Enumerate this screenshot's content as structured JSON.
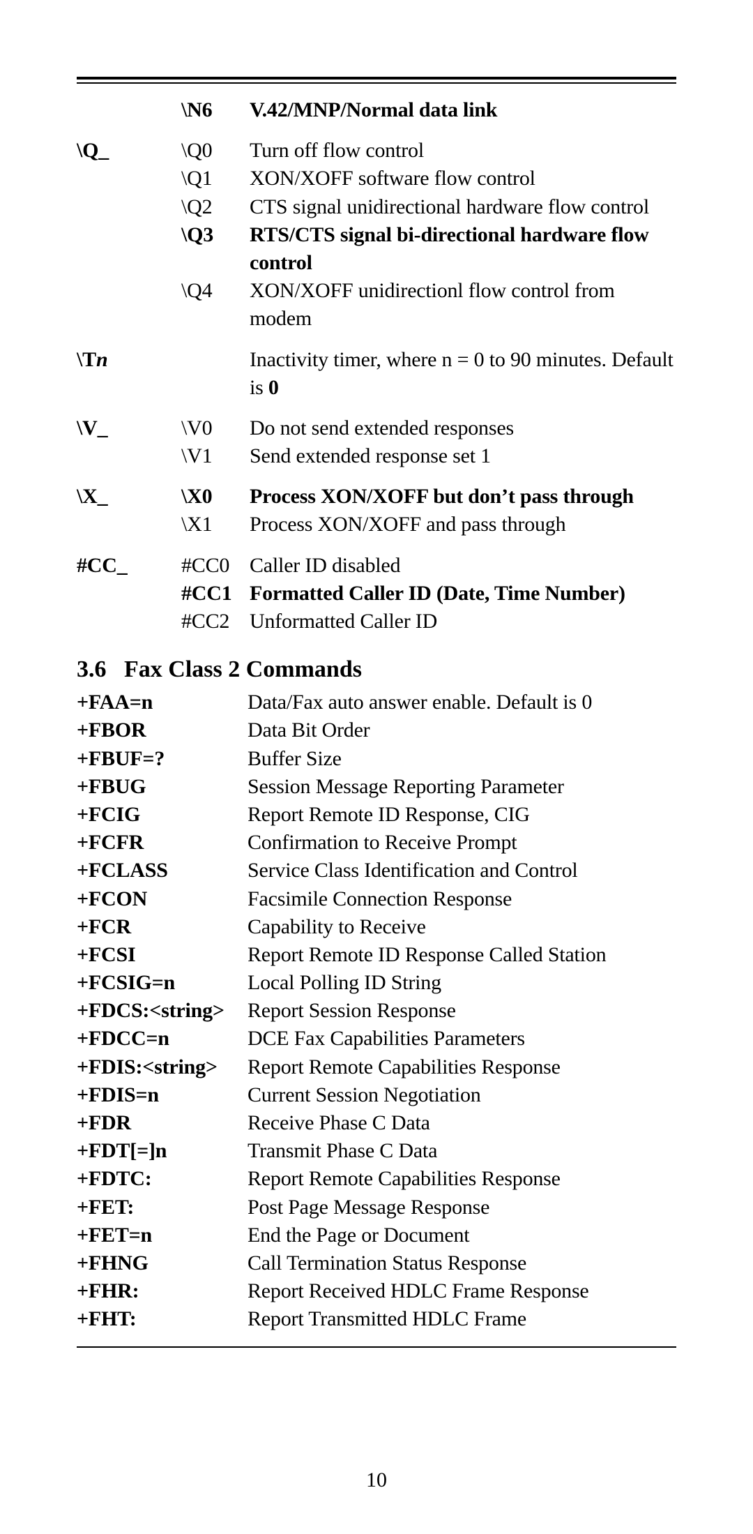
{
  "rule": {},
  "section1": {
    "rows": [
      {
        "group": "",
        "code": "\\N6",
        "desc": "V.42/MNP/Normal data link",
        "bold": true
      },
      {
        "gap": true
      },
      {
        "group": "\\Q_",
        "code": "\\Q0",
        "desc": "Turn off flow control"
      },
      {
        "group": "",
        "code": "\\Q1",
        "desc": "XON/XOFF software flow control"
      },
      {
        "group": "",
        "code": "\\Q2",
        "desc": "CTS signal unidirectional hardware flow control"
      },
      {
        "group": "",
        "code": "\\Q3",
        "desc": "RTS/CTS signal bi-directional hardware flow control",
        "bold": true
      },
      {
        "group": "",
        "code": "\\Q4",
        "desc": "XON/XOFF unidirectionl flow control from modem"
      },
      {
        "gap": true
      },
      {
        "group": "\\T",
        "group_italic_suffix": "n",
        "code": "",
        "desc_prefix": "Inactivity timer, where n = 0 to 90 minutes. Default is ",
        "desc_bold_suffix": "0"
      },
      {
        "gap": true
      },
      {
        "group": "\\V_",
        "code": "\\V0",
        "desc": "Do not send extended responses"
      },
      {
        "group": "",
        "code": "\\V1",
        "desc": "Send extended response set 1"
      },
      {
        "gap": true
      },
      {
        "group": "\\X_",
        "code": "\\X0",
        "desc": "Process XON/XOFF but don’t pass through",
        "bold": true
      },
      {
        "group": "",
        "code": "\\X1",
        "desc": "Process XON/XOFF and pass through"
      },
      {
        "gap": true
      },
      {
        "group": "#CC_",
        "code": "#CC0",
        "desc": "Caller ID disabled"
      },
      {
        "group": "",
        "code": "#CC1",
        "desc": "Formatted Caller ID (Date, Time Number)",
        "bold": true
      },
      {
        "group": "",
        "code": "#CC2",
        "desc": "Unformatted Caller ID"
      }
    ]
  },
  "section2": {
    "heading_number": "3.6",
    "heading_text": "Fax Class 2 Commands",
    "rows": [
      {
        "cmd": "+FAA=n",
        "desc": "Data/Fax auto answer enable. Default is 0"
      },
      {
        "cmd": "+FBOR",
        "desc": "Data Bit Order"
      },
      {
        "cmd": "+FBUF=?",
        "desc": "Buffer Size"
      },
      {
        "cmd": "+FBUG",
        "desc": "Session Message Reporting Parameter"
      },
      {
        "cmd": "+FCIG",
        "desc": "Report Remote ID Response, CIG"
      },
      {
        "cmd": "+FCFR",
        "desc": "Confirmation to Receive Prompt"
      },
      {
        "cmd": "+FCLASS",
        "desc": "Service Class Identification and Control"
      },
      {
        "cmd": "+FCON",
        "desc": "Facsimile Connection Response"
      },
      {
        "cmd": "+FCR",
        "desc": "Capability to Receive"
      },
      {
        "cmd": "+FCSI",
        "desc": "Report Remote ID Response Called Station"
      },
      {
        "cmd": "+FCSIG=n",
        "desc": "Local Polling ID String"
      },
      {
        "cmd": "+FDCS:<string>",
        "desc": "Report Session Response"
      },
      {
        "cmd": "+FDCC=n",
        "desc": "DCE Fax Capabilities Parameters"
      },
      {
        "cmd": "+FDIS:<string>",
        "desc": "Report Remote Capabilities Response"
      },
      {
        "cmd": "+FDIS=n",
        "desc": "Current Session Negotiation"
      },
      {
        "cmd": "+FDR",
        "desc": "Receive Phase C Data"
      },
      {
        "cmd": "+FDT[=]n",
        "desc": "Transmit Phase C Data"
      },
      {
        "cmd": "+FDTC:",
        "desc": "Report Remote Capabilities Response"
      },
      {
        "cmd": "+FET:",
        "desc": "Post Page Message Response"
      },
      {
        "cmd": "+FET=n",
        "desc": "End the Page or Document"
      },
      {
        "cmd": "+FHNG",
        "desc": "Call Termination Status Response"
      },
      {
        "cmd": "+FHR:",
        "desc": "Report Received HDLC Frame Response"
      },
      {
        "cmd": "+FHT:",
        "desc": "Report Transmitted HDLC Frame"
      }
    ]
  },
  "page_number": "10"
}
